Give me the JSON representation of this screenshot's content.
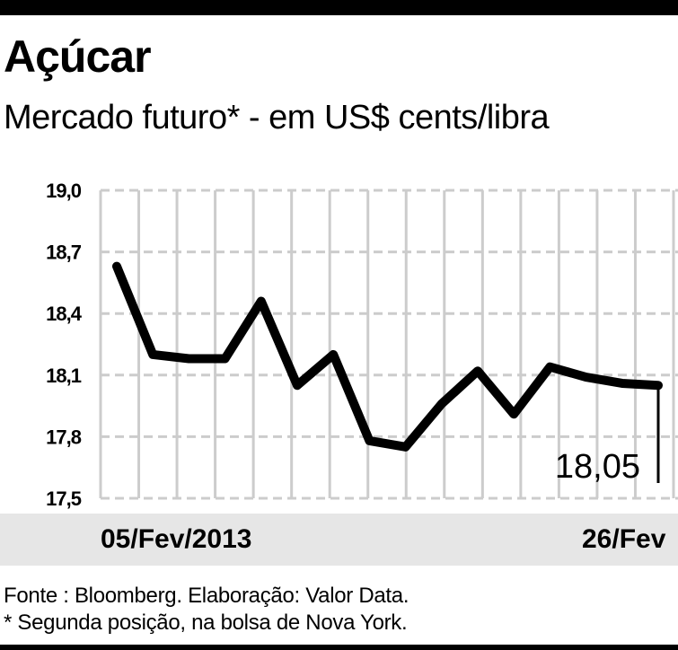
{
  "title": "Açúcar",
  "subtitle": "Mercado futuro* - em US$ cents/libra",
  "footnotes": {
    "source": "Fonte : Bloomberg. Elaboração: Valor Data.",
    "note": "* Segunda posição, na bolsa de Nova York."
  },
  "chart_data": {
    "type": "line",
    "x": [
      "05/Fev/2013",
      "",
      "",
      "",
      "",
      "",
      "",
      "",
      "",
      "",
      "",
      "",
      "",
      "",
      "",
      "26/Fev"
    ],
    "x_labels_shown": {
      "first": "05/Fev/2013",
      "last": "26/Fev"
    },
    "series": [
      {
        "values": [
          18.63,
          18.2,
          18.18,
          18.18,
          18.46,
          18.05,
          18.2,
          17.78,
          17.75,
          17.96,
          18.12,
          17.91,
          18.14,
          18.09,
          18.06,
          18.05
        ]
      }
    ],
    "y_ticks": [
      "19,0",
      "18,7",
      "18,4",
      "18,1",
      "17,8",
      "17,5"
    ],
    "ylim": [
      17.5,
      19.0
    ],
    "last_value_label": "18,05",
    "grid": "vertical and horizontal gridlines",
    "colors": {
      "line": "#000000",
      "grid": "#cccccc",
      "axis_band": "#e6e6e6"
    }
  }
}
